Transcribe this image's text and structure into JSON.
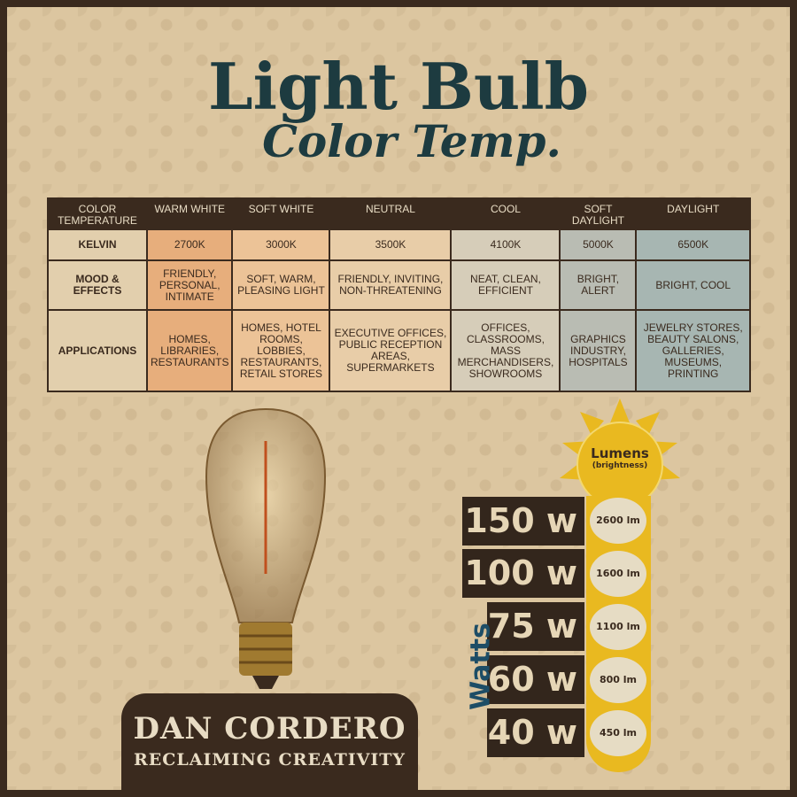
{
  "title": "Light Bulb",
  "subtitle": "Color Temp.",
  "table": {
    "headers": [
      "COLOR TEMPERATURE",
      "WARM WHITE",
      "SOFT WHITE",
      "NEUTRAL",
      "COOL",
      "SOFT DAYLIGHT",
      "DAYLIGHT"
    ],
    "rows": [
      {
        "label": "KELVIN",
        "cells": [
          "2700K",
          "3000K",
          "3500K",
          "4100K",
          "5000K",
          "6500K"
        ]
      },
      {
        "label": "MOOD & EFFECTS",
        "cells": [
          "FRIENDLY, PERSONAL, INTIMATE",
          "SOFT, WARM, PLEASING LIGHT",
          "FRIENDLY, INVITING, NON-THREATENING",
          "NEAT, CLEAN, EFFICIENT",
          "BRIGHT, ALERT",
          "BRIGHT, COOL"
        ]
      },
      {
        "label": "APPLICATIONS",
        "cells": [
          "HOMES, LIBRARIES, RESTAURANTS",
          "HOMES, HOTEL ROOMS, LOBBIES, RESTAURANTS, RETAIL STORES",
          "EXECUTIVE OFFICES, PUBLIC RECEPTION AREAS, SUPERMARKETS",
          "OFFICES, CLASSROOMS, MASS MERCHANDISERS, SHOWROOMS",
          "GRAPHICS INDUSTRY, HOSPITALS",
          "JEWELRY STORES, BEAUTY SALONS, GALLERIES, MUSEUMS, PRINTING"
        ]
      }
    ],
    "column_colors": [
      "#e7ae7c",
      "#ecc397",
      "#e8cda8",
      "#d6cdb9",
      "#b9bcb3",
      "#a7b6b2"
    ]
  },
  "lumens": {
    "title": "Lumens",
    "subtitle": "(brightness)",
    "axis_label": "Watts",
    "rows": [
      {
        "watts": "150 w",
        "lumens": "2600 lm"
      },
      {
        "watts": "100 w",
        "lumens": "1600 lm"
      },
      {
        "watts": "75 w",
        "lumens": "1100 lm"
      },
      {
        "watts": "60 w",
        "lumens": "800 lm"
      },
      {
        "watts": "40 w",
        "lumens": "450 lm"
      }
    ]
  },
  "logo": {
    "name": "DAN CORDERO",
    "tagline": "RECLAIMING CREATIVITY"
  },
  "colors": {
    "title": "#1d3b40",
    "dark": "#3a2a1e",
    "sun": "#e9b920"
  }
}
